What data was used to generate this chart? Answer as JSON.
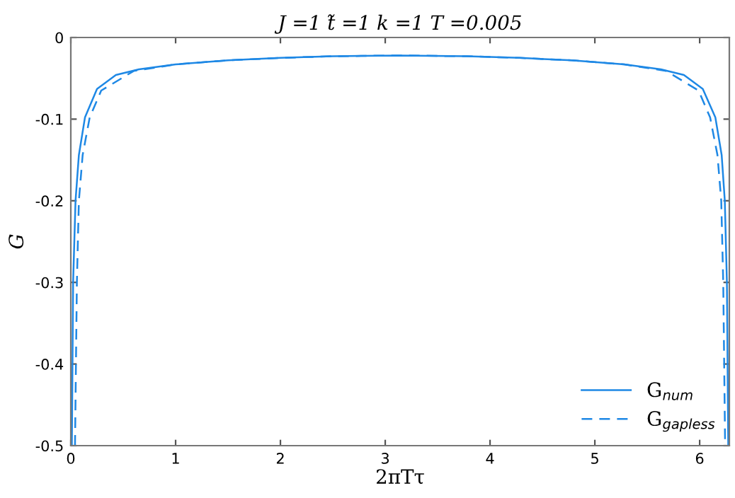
{
  "chart_data": {
    "type": "line",
    "title": "J =1 t̃ =1 k =1 T =0.005",
    "xlabel": "2πTτ",
    "ylabel": "G",
    "xlim": [
      0,
      6.2832
    ],
    "xticks": [
      0,
      1,
      2,
      3,
      4,
      5,
      6
    ],
    "ylim": [
      -0.5,
      0
    ],
    "yticks": [
      -0.5,
      -0.4,
      -0.3,
      -0.2,
      -0.1,
      0
    ],
    "grid": false,
    "legend": "bottom right",
    "marker": "none",
    "series": [
      {
        "name": "G$_{num}$",
        "color": "#1e88e5",
        "line_style": "solid",
        "x": [
          0.01,
          0.022,
          0.045,
          0.077,
          0.135,
          0.25,
          0.43,
          0.65,
          1.0,
          1.5,
          2.0,
          2.5,
          3.14,
          3.78,
          4.28,
          4.78,
          5.28,
          5.63,
          5.85,
          6.03,
          6.15,
          6.21,
          6.24,
          6.26,
          6.273
        ],
        "values": [
          -0.5,
          -0.3,
          -0.2,
          -0.144,
          -0.098,
          -0.063,
          -0.046,
          -0.039,
          -0.033,
          -0.028,
          -0.025,
          -0.023,
          -0.022,
          -0.023,
          -0.025,
          -0.028,
          -0.033,
          -0.039,
          -0.046,
          -0.063,
          -0.098,
          -0.144,
          -0.2,
          -0.3,
          -0.5
        ]
      },
      {
        "name": "G$_{gapless}$",
        "color": "#1e88e5",
        "line_style": "dashed",
        "x": [
          0.04,
          0.058,
          0.077,
          0.113,
          0.18,
          0.29,
          0.6,
          1.0,
          1.5,
          2.0,
          2.5,
          3.14,
          3.78,
          4.28,
          4.78,
          5.28,
          5.68,
          5.99,
          6.1,
          6.17,
          6.206,
          6.225,
          6.243
        ],
        "values": [
          -0.5,
          -0.3,
          -0.2,
          -0.144,
          -0.098,
          -0.065,
          -0.041,
          -0.033,
          -0.028,
          -0.025,
          -0.023,
          -0.022,
          -0.023,
          -0.025,
          -0.028,
          -0.033,
          -0.041,
          -0.065,
          -0.098,
          -0.144,
          -0.2,
          -0.3,
          -0.5
        ]
      }
    ]
  }
}
